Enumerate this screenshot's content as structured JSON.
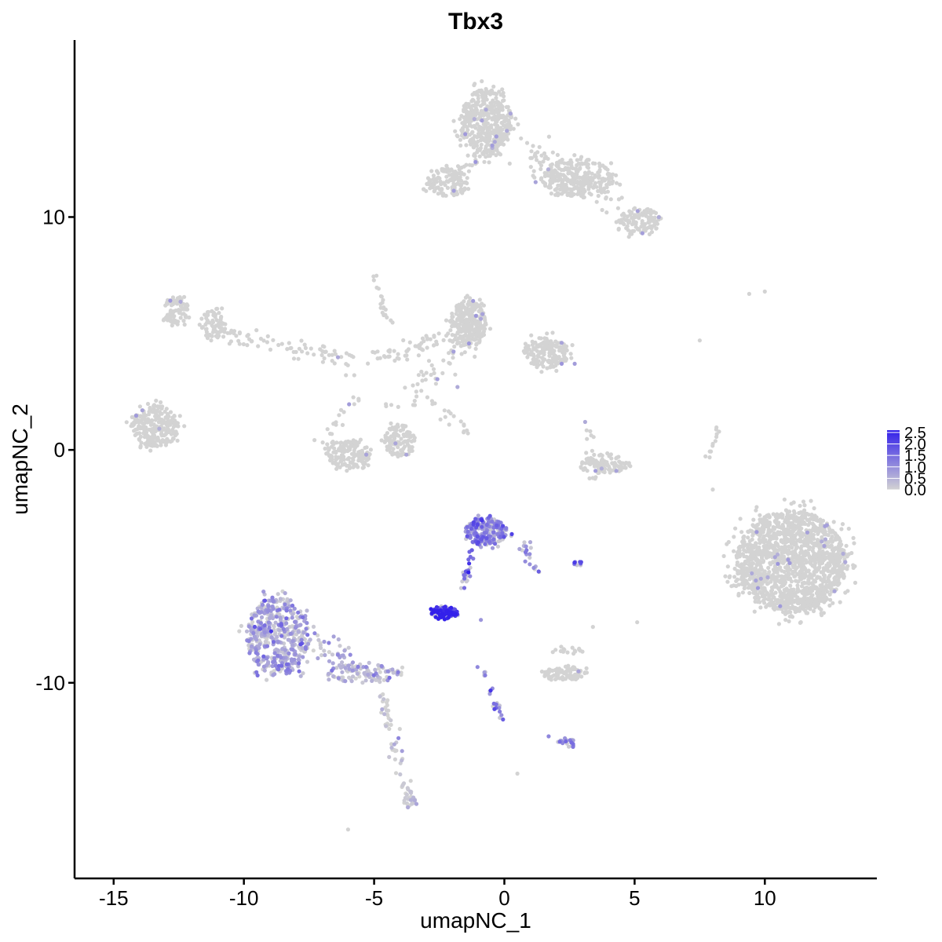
{
  "chart_data": {
    "type": "scatter",
    "title": "Tbx3",
    "xlabel": "umapNC_1",
    "ylabel": "umapNC_2",
    "xlim": [
      -16.5,
      14.3
    ],
    "ylim": [
      -18.4,
      17.6
    ],
    "x_ticks": [
      "-15",
      "-10",
      "-5",
      "0",
      "5",
      "10"
    ],
    "y_ticks": [
      "10",
      "0",
      "-10"
    ],
    "grid": false,
    "legend_position": "right",
    "color_scale": {
      "low_color": "#d3d3d3",
      "high_color": "#3320ea",
      "min": 0.0,
      "max": 2.6,
      "labels": [
        "2.5",
        "2.0",
        "1.5",
        "1.0",
        "0.5",
        "0.0"
      ]
    },
    "clusters": [
      {
        "cx": -0.7,
        "cy": 14.1,
        "rx": 1.0,
        "ry": 1.4,
        "n": 430,
        "expr": 0.0
      },
      {
        "cx": 2.8,
        "cy": 11.7,
        "rx": 1.4,
        "ry": 0.8,
        "n": 260,
        "expr": 0.0
      },
      {
        "cx": 5.2,
        "cy": 9.8,
        "rx": 0.8,
        "ry": 0.6,
        "n": 110,
        "expr": 0.0
      },
      {
        "cx": -2.2,
        "cy": 11.5,
        "rx": 0.8,
        "ry": 0.6,
        "n": 120,
        "expr": 0.0
      },
      {
        "cx": -12.6,
        "cy": 6.0,
        "rx": 0.5,
        "ry": 0.6,
        "n": 90,
        "expr": 0.0
      },
      {
        "cx": -11.2,
        "cy": 5.4,
        "rx": 0.5,
        "ry": 0.7,
        "n": 70,
        "expr": 0.0
      },
      {
        "cx": -13.4,
        "cy": 1.0,
        "rx": 0.9,
        "ry": 0.9,
        "n": 260,
        "expr": 0.0
      },
      {
        "cx": -1.4,
        "cy": 5.4,
        "rx": 0.7,
        "ry": 1.0,
        "n": 260,
        "expr": 0.0
      },
      {
        "cx": 1.6,
        "cy": 4.2,
        "rx": 0.9,
        "ry": 0.7,
        "n": 170,
        "expr": 0.0
      },
      {
        "cx": -6.0,
        "cy": -0.2,
        "rx": 0.9,
        "ry": 0.6,
        "n": 160,
        "expr": 0.0
      },
      {
        "cx": -4.0,
        "cy": 0.4,
        "rx": 0.6,
        "ry": 0.7,
        "n": 110,
        "expr": 0.0
      },
      {
        "cx": 3.8,
        "cy": -0.6,
        "rx": 1.0,
        "ry": 0.4,
        "n": 90,
        "expr": 0.0
      },
      {
        "cx": 11.0,
        "cy": -4.8,
        "rx": 2.1,
        "ry": 2.2,
        "n": 1500,
        "expr": 0.0
      },
      {
        "cx": -0.7,
        "cy": -3.5,
        "rx": 0.8,
        "ry": 0.6,
        "n": 220,
        "expr": 1.2
      },
      {
        "cx": -2.3,
        "cy": -7.0,
        "rx": 0.5,
        "ry": 0.25,
        "n": 110,
        "expr": 2.4
      },
      {
        "cx": -8.7,
        "cy": -8.0,
        "rx": 1.2,
        "ry": 1.7,
        "n": 480,
        "expr": 0.65
      },
      {
        "cx": -5.4,
        "cy": -9.6,
        "rx": 1.4,
        "ry": 0.4,
        "n": 100,
        "expr": 0.4
      },
      {
        "cx": 2.3,
        "cy": -9.6,
        "rx": 0.9,
        "ry": 0.3,
        "n": 90,
        "expr": 0.0
      },
      {
        "cx": 2.4,
        "cy": -12.6,
        "rx": 0.35,
        "ry": 0.25,
        "n": 22,
        "expr": 1.0
      },
      {
        "cx": -3.6,
        "cy": -15.0,
        "rx": 0.3,
        "ry": 0.5,
        "n": 26,
        "expr": 0.1
      }
    ],
    "streams": [
      {
        "x1": -0.4,
        "y1": 12.8,
        "x2": -2.2,
        "y2": 11.7,
        "n": 40,
        "spread": 0.18,
        "expr": 0.0
      },
      {
        "x1": 0.8,
        "y1": 13.0,
        "x2": 4.0,
        "y2": 10.6,
        "n": 80,
        "spread": 0.35,
        "expr": 0.0
      },
      {
        "x1": -10.6,
        "y1": 5.0,
        "x2": -5.6,
        "y2": 3.8,
        "n": 70,
        "spread": 0.25,
        "expr": 0.0
      },
      {
        "x1": -5.2,
        "y1": 3.9,
        "x2": -1.4,
        "y2": 5.0,
        "n": 60,
        "spread": 0.25,
        "expr": 0.0
      },
      {
        "x1": -5.0,
        "y1": 7.6,
        "x2": -4.4,
        "y2": 5.4,
        "n": 20,
        "spread": 0.08,
        "expr": 0.0
      },
      {
        "x1": -1.4,
        "y1": 4.5,
        "x2": -4.5,
        "y2": 1.4,
        "n": 40,
        "spread": 0.25,
        "expr": 0.0
      },
      {
        "x1": -3.0,
        "y1": 2.0,
        "x2": -1.4,
        "y2": 0.8,
        "n": 18,
        "spread": 0.12,
        "expr": 0.0
      },
      {
        "x1": -5.8,
        "y1": 2.2,
        "x2": -6.9,
        "y2": 0.4,
        "n": 20,
        "spread": 0.15,
        "expr": 0.0
      },
      {
        "x1": -1.2,
        "y1": -4.3,
        "x2": -1.7,
        "y2": -6.1,
        "n": 25,
        "spread": 0.08,
        "expr": 1.7
      },
      {
        "x1": 0.7,
        "y1": -4.0,
        "x2": 1.2,
        "y2": -5.4,
        "n": 20,
        "spread": 0.1,
        "expr": 0.9
      },
      {
        "x1": -7.5,
        "y1": -8.2,
        "x2": -5.0,
        "y2": -9.6,
        "n": 45,
        "spread": 0.3,
        "expr": 0.5
      },
      {
        "x1": -4.7,
        "y1": -10.5,
        "x2": -3.6,
        "y2": -15.3,
        "n": 55,
        "spread": 0.12,
        "expr": 0.05
      },
      {
        "x1": -0.9,
        "y1": -9.2,
        "x2": -0.1,
        "y2": -11.7,
        "n": 22,
        "spread": 0.08,
        "expr": 1.1
      },
      {
        "x1": 1.9,
        "y1": -8.6,
        "x2": 3.0,
        "y2": -8.6,
        "n": 16,
        "spread": 0.08,
        "expr": 0.0
      },
      {
        "x1": 3.4,
        "y1": -1.3,
        "x2": 3.2,
        "y2": 1.3,
        "n": 18,
        "spread": 0.12,
        "expr": 0.0
      },
      {
        "x1": 8.2,
        "y1": 1.0,
        "x2": 7.8,
        "y2": -0.6,
        "n": 12,
        "spread": 0.06,
        "expr": 0.0
      },
      {
        "x1": 2.5,
        "y1": -4.9,
        "x2": 3.0,
        "y2": -4.9,
        "n": 8,
        "spread": 0.05,
        "expr": 1.4
      }
    ],
    "singletons": [
      {
        "x": 10.0,
        "y": 6.8,
        "expr": 0.0
      },
      {
        "x": 9.4,
        "y": 6.7,
        "expr": 0.0
      },
      {
        "x": 7.5,
        "y": 4.7,
        "expr": 0.0
      },
      {
        "x": 8.0,
        "y": -1.7,
        "expr": 0.0
      },
      {
        "x": -1.2,
        "y": 6.4,
        "expr": 0.8
      },
      {
        "x": 1.2,
        "y": 11.5,
        "expr": 0.7
      },
      {
        "x": 0.1,
        "y": 13.7,
        "expr": 0.6
      },
      {
        "x": 2.2,
        "y": 3.7,
        "expr": 0.9
      },
      {
        "x": 2.7,
        "y": 3.7,
        "expr": 0.8
      },
      {
        "x": 2.2,
        "y": 4.6,
        "expr": 0.7
      },
      {
        "x": -1.8,
        "y": 2.7,
        "expr": 0.6
      },
      {
        "x": -13.9,
        "y": 1.7,
        "expr": 0.7
      },
      {
        "x": -5.3,
        "y": -0.2,
        "expr": 0.7
      },
      {
        "x": 3.5,
        "y": -0.9,
        "expr": 0.8
      },
      {
        "x": 4.3,
        "y": -0.9,
        "expr": 0.7
      },
      {
        "x": 3.1,
        "y": 1.2,
        "expr": 0.6
      },
      {
        "x": 9.5,
        "y": -5.3,
        "expr": 0.6
      },
      {
        "x": 5.1,
        "y": -7.4,
        "expr": 0.0
      },
      {
        "x": 0.5,
        "y": -13.9,
        "expr": 0.0
      },
      {
        "x": -6.0,
        "y": -16.3,
        "expr": 0.0
      },
      {
        "x": 1.7,
        "y": -12.3,
        "expr": 1.1
      },
      {
        "x": -0.9,
        "y": -7.3,
        "expr": 0.9
      },
      {
        "x": 3.4,
        "y": -7.6,
        "expr": 0.0
      }
    ]
  }
}
